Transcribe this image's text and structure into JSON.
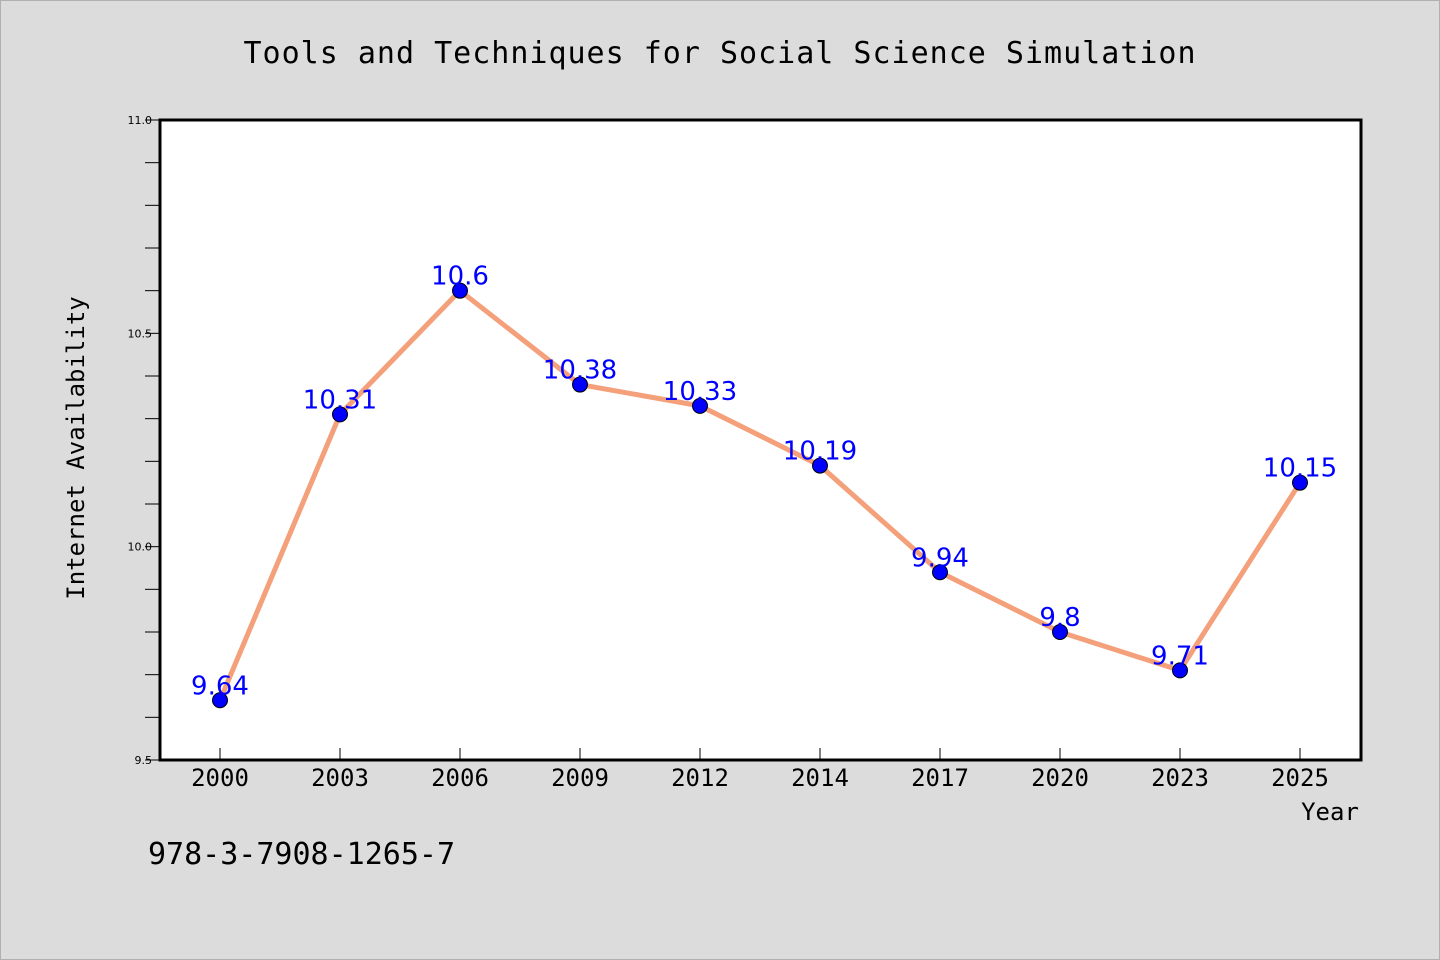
{
  "chart_data": {
    "type": "line",
    "title": "Tools and Techniques for Social Science Simulation",
    "xlabel": "Year",
    "ylabel": "Internet Availability",
    "categories": [
      "2000",
      "2003",
      "2006",
      "2009",
      "2012",
      "2014",
      "2017",
      "2020",
      "2023",
      "2025"
    ],
    "series": [
      {
        "values": [
          9.64,
          10.31,
          10.6,
          10.38,
          10.33,
          10.19,
          9.94,
          9.8,
          9.71,
          10.15
        ],
        "line_color": "#f4a07a",
        "marker_color": "#0000ff"
      }
    ],
    "data_labels": [
      "9.64",
      "10.31",
      "10.6",
      "10.38",
      "10.33",
      "10.19",
      "9.94",
      "9.8",
      "9.71",
      "10.15"
    ],
    "data_label_color": "#0000ff",
    "ylim": [
      9.5,
      11.0
    ],
    "ytick_labels": [
      "9.5",
      "10.0",
      "10.5",
      "11.0"
    ],
    "grid": false,
    "legend": "none"
  },
  "footer": {
    "isbn": "978-3-7908-1265-7"
  },
  "colors": {
    "background": "#dcdcdc",
    "plot_area": "#ffffff"
  }
}
